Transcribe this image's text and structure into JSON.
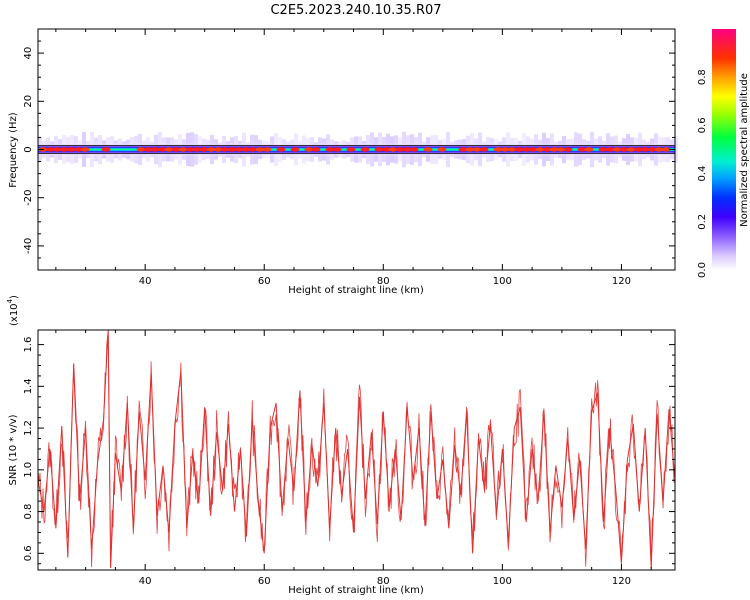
{
  "figure_title": "C2E5.2023.240.10.35.R07",
  "chart_data": [
    {
      "type": "heatmap",
      "title": "C2E5.2023.240.10.35.R07",
      "xlabel": "Height of straight line (km)",
      "ylabel": "Frequency (Hz)",
      "xlim": [
        22,
        129
      ],
      "ylim": [
        -50,
        50
      ],
      "xticks": [
        40,
        60,
        80,
        100,
        120
      ],
      "xtick_labels": [
        "40",
        "60",
        "80",
        "100",
        "120"
      ],
      "yticks": [
        -40,
        -20,
        0,
        20,
        40
      ],
      "ytick_labels": [
        "-40",
        "-20",
        "0",
        "20",
        "40"
      ],
      "colorbar": {
        "label": "Normalized spectral amplitude",
        "range": [
          0.0,
          1.0
        ],
        "ticks": [
          0.0,
          0.2,
          0.4,
          0.6,
          0.8
        ],
        "tick_labels": [
          "0.0",
          "0.2",
          "0.4",
          "0.6",
          "0.8"
        ]
      },
      "description_band": {
        "center_frequency": 0,
        "core_halfwidth_hz": 1,
        "spread_halfwidth_hz": 5,
        "peak_amplitude": 0.95
      }
    },
    {
      "type": "line",
      "xlabel": "Height of straight line (km)",
      "ylabel": "SNR (10 * v/v)",
      "exponent_label": "(x10",
      "exponent_power": "4",
      "exponent_close": ")",
      "xlim": [
        22,
        129
      ],
      "ylim": [
        0.52,
        1.67
      ],
      "xticks": [
        40,
        60,
        80,
        100,
        120
      ],
      "xtick_labels": [
        "40",
        "60",
        "80",
        "100",
        "120"
      ],
      "yticks": [
        0.6,
        0.8,
        1.0,
        1.2,
        1.4,
        1.6
      ],
      "ytick_labels": [
        "0.6",
        "0.8",
        "1.0",
        "1.2",
        "1.4",
        "1.6"
      ],
      "series": [
        {
          "name": "SNR",
          "color": "#e03030",
          "x": [
            22,
            23,
            24,
            25,
            26,
            27,
            28,
            29,
            30,
            31,
            32,
            33,
            33.8,
            34.2,
            35,
            36,
            37,
            38,
            39,
            40,
            41,
            42,
            43,
            44,
            45,
            46,
            47,
            48,
            49,
            50,
            51,
            52,
            53,
            54,
            55,
            56,
            57,
            58,
            59,
            60,
            61,
            62,
            63,
            64,
            65,
            66,
            67,
            68,
            69,
            70,
            71,
            72,
            73,
            74,
            75,
            76,
            77,
            78,
            79,
            80,
            81,
            82,
            83,
            84,
            85,
            86,
            87,
            88,
            89,
            90,
            91,
            92,
            93,
            94,
            95,
            96,
            97,
            98,
            99,
            100,
            101,
            102,
            103,
            104,
            105,
            106,
            107,
            108,
            109,
            110,
            111,
            112,
            113,
            114,
            115,
            116,
            117,
            118,
            119,
            120,
            121,
            122,
            123,
            124,
            125,
            126,
            127,
            128,
            129
          ],
          "values": [
            0.95,
            0.8,
            1.1,
            0.72,
            1.21,
            0.58,
            1.51,
            0.85,
            1.2,
            0.62,
            1.03,
            1.24,
            1.67,
            0.53,
            1.08,
            0.9,
            1.32,
            0.72,
            1.28,
            0.95,
            1.46,
            0.78,
            1.02,
            0.7,
            1.22,
            1.47,
            0.72,
            1.08,
            0.84,
            1.3,
            0.78,
            1.18,
            0.9,
            1.22,
            0.8,
            1.1,
            0.68,
            1.24,
            0.85,
            0.6,
            1.2,
            1.32,
            0.8,
            1.15,
            0.9,
            1.38,
            0.75,
            1.12,
            0.92,
            1.32,
            0.72,
            1.2,
            0.88,
            1.1,
            0.7,
            1.35,
            0.86,
            1.18,
            0.74,
            1.28,
            0.82,
            1.1,
            0.76,
            1.3,
            0.95,
            1.2,
            0.73,
            1.28,
            0.86,
            1.05,
            0.72,
            1.12,
            0.88,
            1.28,
            0.6,
            1.15,
            0.9,
            1.22,
            0.78,
            1.1,
            0.65,
            1.2,
            1.3,
            0.75,
            1.1,
            0.85,
            1.28,
            0.7,
            1.02,
            0.82,
            1.15,
            0.76,
            1.05,
            0.62,
            1.28,
            1.37,
            0.75,
            1.2,
            0.92,
            0.55,
            1.05,
            1.22,
            0.8,
            1.2,
            0.53,
            1.27,
            0.85,
            1.29,
            0.95
          ]
        }
      ]
    }
  ]
}
